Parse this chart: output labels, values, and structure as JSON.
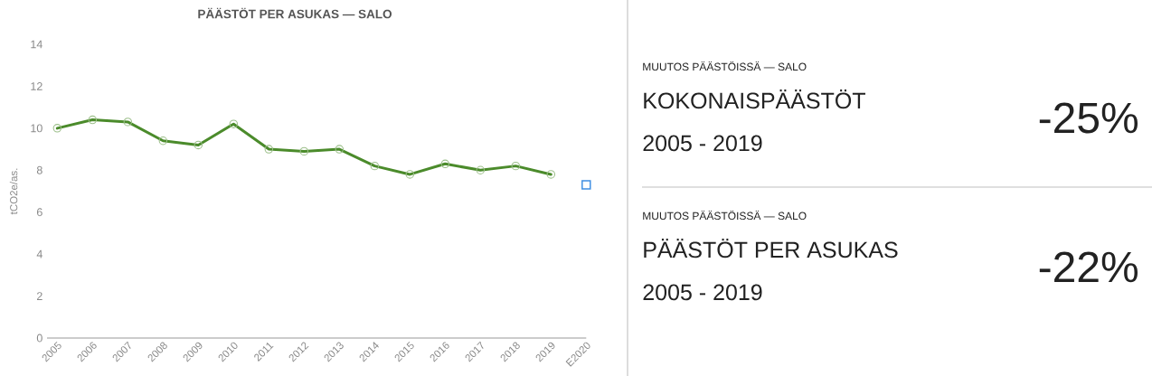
{
  "chart_data": [
    {
      "type": "line",
      "title": "PÄÄSTÖT PER ASUKAS — SALO",
      "ylabel": "tCO2e/as.",
      "categories": [
        "2005",
        "2006",
        "2007",
        "2008",
        "2009",
        "2010",
        "2011",
        "2012",
        "2013",
        "2014",
        "2015",
        "2016",
        "2017",
        "2018",
        "2019",
        "E2020"
      ],
      "ylim": [
        0,
        14
      ],
      "yticks": [
        0,
        2,
        4,
        6,
        8,
        10,
        12,
        14
      ],
      "marker": "circle",
      "series": [
        {
          "color": "#4b8b2b",
          "values": [
            10.0,
            10.4,
            10.3,
            9.4,
            9.2,
            10.2,
            9.0,
            8.9,
            9.0,
            8.2,
            7.8,
            8.3,
            8.0,
            8.2,
            7.8,
            null
          ]
        },
        {
          "type": "scatter",
          "marker": "square",
          "color": "#3f8fe3",
          "values": [
            null,
            null,
            null,
            null,
            null,
            null,
            null,
            null,
            null,
            null,
            null,
            null,
            null,
            null,
            null,
            7.3
          ]
        }
      ]
    },
    {
      "type": "other",
      "subtitle": "MUUTOS PÄÄSTÖISSÄ — SALO",
      "title": "KOKONAISPÄÄSTÖT",
      "annotations": [
        "2005 - 2019",
        "-25%"
      ]
    },
    {
      "type": "other",
      "subtitle": "MUUTOS PÄÄSTÖISSÄ — SALO",
      "title": "PÄÄSTÖT PER ASUKAS",
      "annotations": [
        "2005 - 2019",
        "-22%"
      ]
    }
  ]
}
